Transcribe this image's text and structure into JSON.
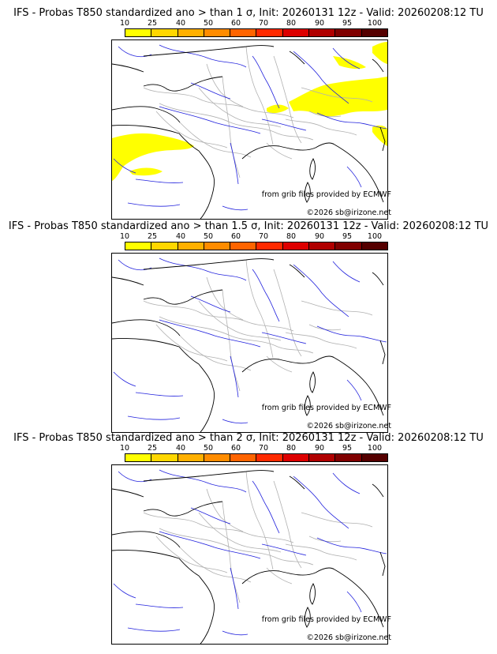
{
  "panels": [
    {
      "title": "IFS - Probas T850  standardized ano > than 1 σ, Init: 20260131 12z - Valid: 20260208:12 TU",
      "source_credit": "from grib files provided by ECMWF",
      "copyright": "©2026 sb@irizone.net",
      "has_probability_area": true
    },
    {
      "title": "IFS - Probas T850  standardized ano > than 1.5 σ, Init: 20260131 12z - Valid: 20260208:12 TU",
      "source_credit": "from grib files provided by ECMWF",
      "copyright": "©2026 sb@irizone.net",
      "has_probability_area": false
    },
    {
      "title": "IFS - Probas T850  standardized ano > than 2 σ, Init: 20260131 12z - Valid: 20260208:12 TU",
      "source_credit": "from grib files provided by ECMWF",
      "copyright": "©2026 sb@irizone.net",
      "has_probability_area": false
    }
  ],
  "colorbar": {
    "labels": [
      "10",
      "25",
      "40",
      "50",
      "60",
      "70",
      "80",
      "90",
      "95",
      "100"
    ],
    "colors": [
      "#ffff00",
      "#ffd700",
      "#ffb000",
      "#ff8c00",
      "#ff6400",
      "#ff2a00",
      "#dd0000",
      "#b00000",
      "#800000",
      "#550000"
    ]
  },
  "map_colors": {
    "coast": "#000000",
    "borders": "#b0b0b0",
    "rivers": "#2222dd",
    "probability_fill": "#ffff00"
  }
}
